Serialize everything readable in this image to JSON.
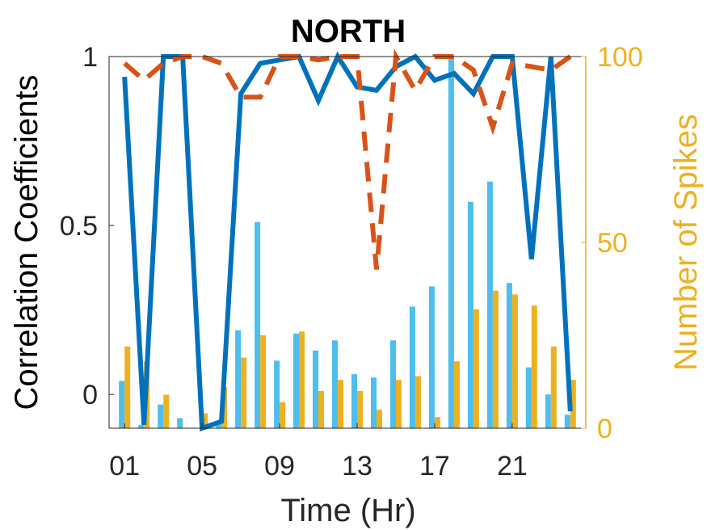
{
  "chart_data": {
    "type": "bar",
    "title": "NORTH",
    "xlabel": "Time (Hr)",
    "ylabel_left": "Correlation Coefficients",
    "ylabel_right": "Number of Spikes",
    "x_tick_labels": [
      "01",
      "05",
      "09",
      "13",
      "17",
      "21"
    ],
    "x_tick_hours": [
      1,
      5,
      9,
      13,
      17,
      21
    ],
    "xlim": [
      0.2,
      24.8
    ],
    "ylim_left": [
      -0.1,
      1
    ],
    "ylim_right": [
      0,
      100
    ],
    "left_ticks": [
      0,
      0.5,
      1
    ],
    "left_tick_labels": [
      "0",
      "0.5",
      "1"
    ],
    "right_ticks": [
      0,
      50,
      100
    ],
    "right_tick_labels": [
      "0",
      "50",
      "100"
    ],
    "hours": [
      1,
      2,
      3,
      4,
      5,
      6,
      7,
      8,
      9,
      10,
      11,
      12,
      13,
      14,
      15,
      16,
      17,
      18,
      19,
      20,
      21,
      22,
      23,
      24
    ],
    "series": [
      {
        "kind": "line",
        "axis": "left",
        "style": "solid",
        "color": "#0072BD",
        "values": [
          0.94,
          -0.09,
          1.0,
          1.0,
          -0.1,
          -0.08,
          0.89,
          0.98,
          0.99,
          1.0,
          0.87,
          1.0,
          0.91,
          0.9,
          0.97,
          1.0,
          0.93,
          0.95,
          0.89,
          1.0,
          1.0,
          0.4,
          1.0,
          -0.05
        ]
      },
      {
        "kind": "line",
        "axis": "left",
        "style": "dashed",
        "color": "#D95319",
        "values": [
          0.98,
          0.93,
          0.98,
          1.0,
          1.0,
          0.98,
          0.88,
          0.88,
          1.0,
          1.0,
          0.99,
          1.0,
          1.0,
          0.37,
          1.0,
          0.9,
          1.0,
          1.0,
          0.96,
          0.79,
          0.98,
          0.97,
          0.96,
          1.0
        ]
      },
      {
        "kind": "bar",
        "axis": "left",
        "color": "#4DBEEE",
        "values": [
          0.04,
          -0.09,
          -0.03,
          -0.07,
          -0.1,
          -0.08,
          0.19,
          0.51,
          0.1,
          0.18,
          0.13,
          0.16,
          0.06,
          0.05,
          0.16,
          0.26,
          0.32,
          1.0,
          0.57,
          0.63,
          0.33,
          0.08,
          0.0,
          -0.06
        ]
      },
      {
        "kind": "bar",
        "axis": "right",
        "color": "#EDB120",
        "values": [
          22,
          18,
          9,
          0,
          4,
          11,
          19,
          25,
          7,
          26,
          10,
          13,
          10,
          5,
          13,
          14,
          3,
          18,
          32,
          37,
          36,
          33,
          22,
          13
        ]
      }
    ]
  }
}
